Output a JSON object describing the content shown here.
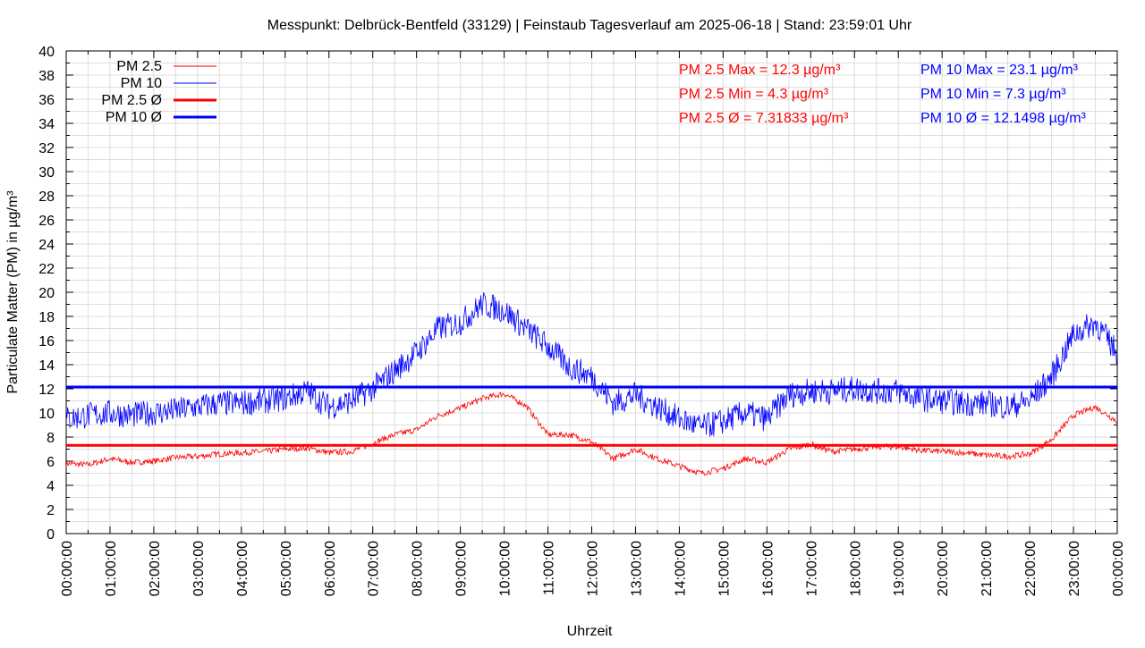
{
  "chart_data": {
    "type": "line",
    "title": "Messpunkt: Delbrück-Bentfeld (33129) | Feinstaub Tagesverlauf am 2025-06-18 | Stand: 23:59:01 Uhr",
    "xlabel": "Uhrzeit",
    "ylabel": "Particulate Matter (PM) in µg/m³",
    "ylim": [
      0,
      40
    ],
    "yticks": [
      0,
      2,
      4,
      6,
      8,
      10,
      12,
      14,
      16,
      18,
      20,
      22,
      24,
      26,
      28,
      30,
      32,
      34,
      36,
      38,
      40
    ],
    "xticks": [
      "00:00:00",
      "01:00:00",
      "02:00:00",
      "03:00:00",
      "04:00:00",
      "05:00:00",
      "06:00:00",
      "07:00:00",
      "08:00:00",
      "09:00:00",
      "10:00:00",
      "11:00:00",
      "12:00:00",
      "13:00:00",
      "14:00:00",
      "15:00:00",
      "16:00:00",
      "17:00:00",
      "18:00:00",
      "19:00:00",
      "20:00:00",
      "21:00:00",
      "22:00:00",
      "23:00:00",
      "00:00:00"
    ],
    "grid": true,
    "legend_position": "top-left",
    "x_hours": [
      0,
      0.5,
      1,
      1.5,
      2,
      2.5,
      3,
      3.5,
      4,
      4.5,
      5,
      5.5,
      6,
      6.5,
      7,
      7.5,
      8,
      8.5,
      9,
      9.5,
      10,
      10.5,
      11,
      11.5,
      12,
      12.5,
      13,
      13.5,
      14,
      14.5,
      15,
      15.5,
      16,
      16.5,
      17,
      17.5,
      18,
      18.5,
      19,
      19.5,
      20,
      20.5,
      21,
      21.5,
      22,
      22.5,
      23,
      23.5,
      24
    ],
    "series": [
      {
        "name": "PM 2.5",
        "color": "#ff0000",
        "values": [
          5.8,
          5.7,
          6.2,
          5.9,
          6.0,
          6.3,
          6.4,
          6.6,
          6.7,
          6.8,
          7.0,
          7.1,
          6.7,
          6.8,
          7.5,
          8.2,
          8.6,
          9.8,
          10.4,
          11.2,
          11.6,
          10.6,
          8.2,
          8.2,
          7.6,
          6.2,
          7.0,
          6.2,
          5.6,
          5.0,
          5.4,
          6.2,
          5.9,
          7.0,
          7.4,
          6.8,
          7.0,
          7.2,
          7.2,
          6.9,
          6.8,
          6.7,
          6.5,
          6.4,
          6.6,
          7.8,
          9.8,
          10.5,
          9.3
        ]
      },
      {
        "name": "PM 10",
        "color": "#0000ff",
        "values": [
          9.5,
          9.8,
          10.0,
          9.8,
          10.0,
          10.2,
          10.5,
          10.8,
          10.8,
          11.0,
          11.2,
          11.8,
          10.5,
          11.0,
          12.0,
          13.5,
          15.0,
          17.0,
          17.5,
          19.0,
          18.5,
          17.0,
          15.5,
          13.8,
          13.0,
          10.8,
          11.5,
          10.5,
          9.5,
          8.8,
          9.3,
          10.0,
          9.5,
          11.5,
          11.8,
          11.8,
          12.0,
          11.8,
          11.8,
          11.2,
          11.0,
          10.8,
          10.8,
          10.5,
          11.0,
          13.0,
          16.5,
          17.5,
          15.0
        ]
      }
    ],
    "averages": [
      {
        "name": "PM 2.5 Ø",
        "color": "#ff0000",
        "value": 7.31833
      },
      {
        "name": "PM 10 Ø",
        "color": "#0000ff",
        "value": 12.1498
      }
    ],
    "annotations": {
      "pm25": [
        "PM 2.5 Max = 12.3 µg/m³",
        "PM 2.5 Min = 4.3 µg/m³",
        "PM 2.5 Ø = 7.31833 µg/m³"
      ],
      "pm10": [
        "PM 10 Max = 23.1 µg/m³",
        "PM 10 Min = 7.3 µg/m³",
        "PM 10 Ø = 12.1498 µg/m³"
      ]
    }
  }
}
